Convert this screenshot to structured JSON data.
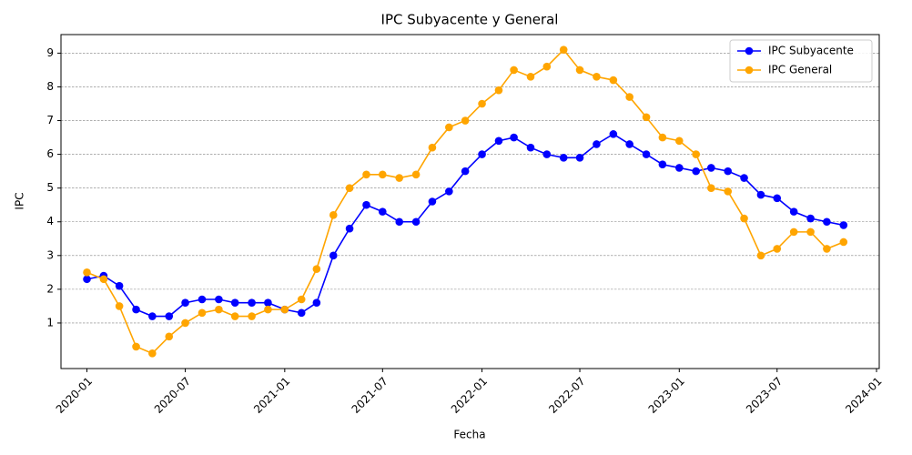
{
  "chart_data": {
    "type": "line",
    "title": "IPC Subyacente y General",
    "xlabel": "Fecha",
    "ylabel": "IPC",
    "x": [
      "2020-01",
      "2020-02",
      "2020-03",
      "2020-04",
      "2020-05",
      "2020-06",
      "2020-07",
      "2020-08",
      "2020-09",
      "2020-10",
      "2020-11",
      "2020-12",
      "2021-01",
      "2021-02",
      "2021-03",
      "2021-04",
      "2021-05",
      "2021-06",
      "2021-07",
      "2021-08",
      "2021-09",
      "2021-10",
      "2021-11",
      "2021-12",
      "2022-01",
      "2022-02",
      "2022-03",
      "2022-04",
      "2022-05",
      "2022-06",
      "2022-07",
      "2022-08",
      "2022-09",
      "2022-10",
      "2022-11",
      "2022-12",
      "2023-01",
      "2023-02",
      "2023-03",
      "2023-04",
      "2023-05",
      "2023-06",
      "2023-07",
      "2023-08",
      "2023-09",
      "2023-10",
      "2023-11"
    ],
    "series": [
      {
        "name": "IPC Subyacente",
        "color": "#0000ff",
        "values": [
          2.3,
          2.4,
          2.1,
          1.4,
          1.2,
          1.2,
          1.6,
          1.7,
          1.7,
          1.6,
          1.6,
          1.6,
          1.4,
          1.3,
          1.6,
          3.0,
          3.8,
          4.5,
          4.3,
          4.0,
          4.0,
          4.6,
          4.9,
          5.5,
          6.0,
          6.4,
          6.5,
          6.2,
          6.0,
          5.9,
          5.9,
          6.3,
          6.6,
          6.3,
          6.0,
          5.7,
          5.6,
          5.5,
          5.6,
          5.5,
          5.3,
          4.8,
          4.7,
          4.3,
          4.1,
          4.0,
          3.9
        ]
      },
      {
        "name": "IPC General",
        "color": "#ffa500",
        "values": [
          2.5,
          2.3,
          1.5,
          0.3,
          0.1,
          0.6,
          1.0,
          1.3,
          1.4,
          1.2,
          1.2,
          1.4,
          1.4,
          1.7,
          2.6,
          4.2,
          5.0,
          5.4,
          5.4,
          5.3,
          5.4,
          6.2,
          6.8,
          7.0,
          7.5,
          7.9,
          8.5,
          8.3,
          8.6,
          9.1,
          8.5,
          8.3,
          8.2,
          7.7,
          7.1,
          6.5,
          6.4,
          6.0,
          5.0,
          4.9,
          4.1,
          3.0,
          3.2,
          3.7,
          3.7,
          3.2,
          3.4
        ]
      }
    ],
    "xlim": [
      "2019-11-14",
      "2024-01-06"
    ],
    "xticks": [
      "2020-01",
      "2020-07",
      "2021-01",
      "2021-07",
      "2022-01",
      "2022-07",
      "2023-01",
      "2023-07",
      "2024-01"
    ],
    "ylim": [
      -0.35,
      9.55
    ],
    "yticks": [
      1,
      2,
      3,
      4,
      5,
      6,
      7,
      8,
      9
    ],
    "grid": true,
    "legend": "upper right"
  }
}
